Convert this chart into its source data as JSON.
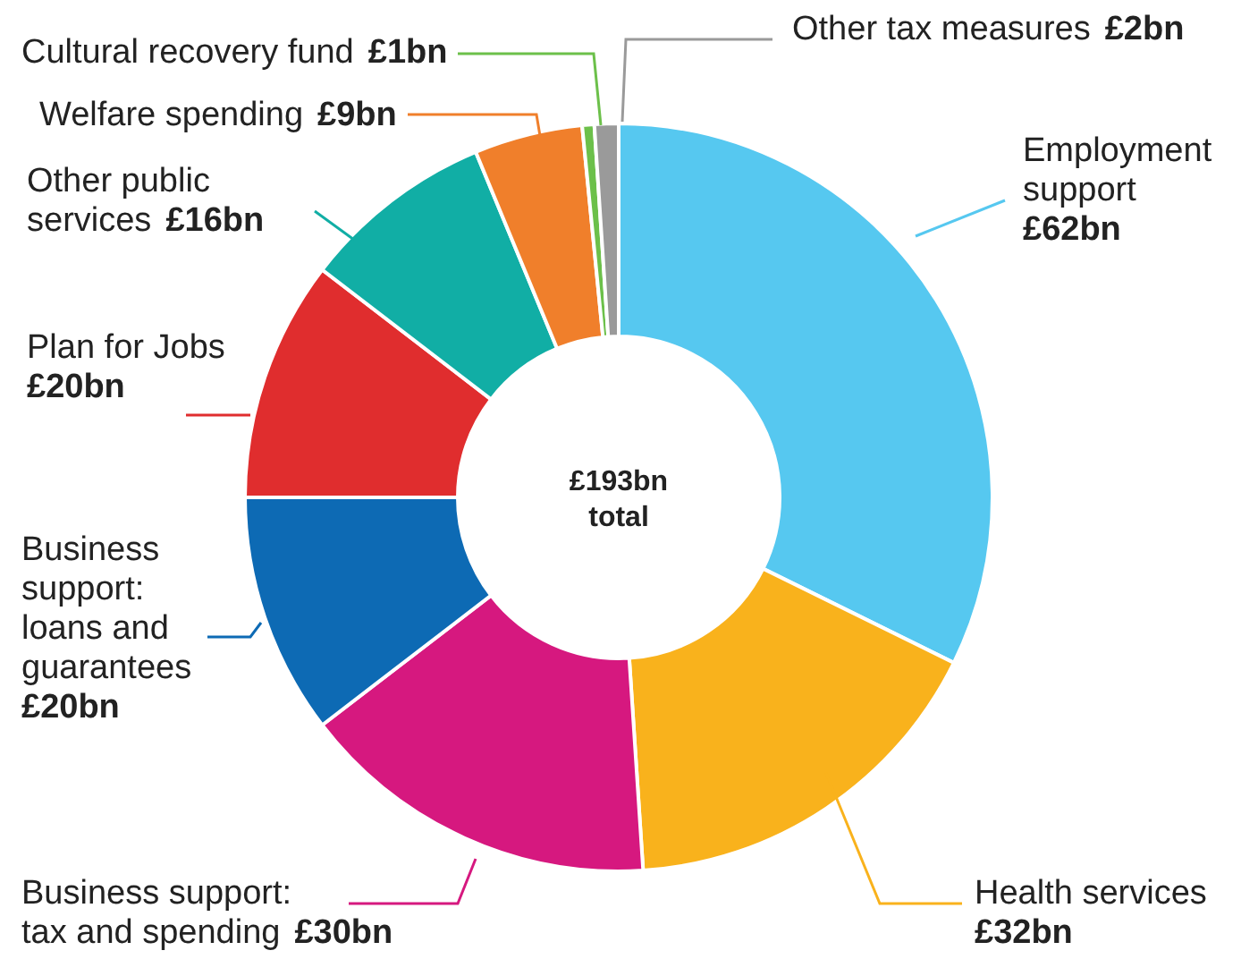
{
  "chart_data": {
    "type": "donut",
    "categories": [
      "Employment support",
      "Health services",
      "Business support: tax and spending",
      "Business support: loans and guarantees",
      "Plan for Jobs",
      "Other public services",
      "Welfare spending",
      "Cultural recovery fund",
      "Other tax measures"
    ],
    "values": [
      62,
      32,
      30,
      20,
      20,
      16,
      9,
      1,
      2
    ],
    "value_labels": [
      "£62bn",
      "£32bn",
      "£30bn",
      "£20bn",
      "£20bn",
      "£16bn",
      "£9bn",
      "£1bn",
      "£2bn"
    ],
    "colors": [
      "#56c8f0",
      "#f9b21c",
      "#d6187f",
      "#0d6ab4",
      "#e02d2e",
      "#11aea5",
      "#f07f2b",
      "#6cc04a",
      "#9a9a9a"
    ],
    "annotations": [
      "£193bn total"
    ]
  }
}
